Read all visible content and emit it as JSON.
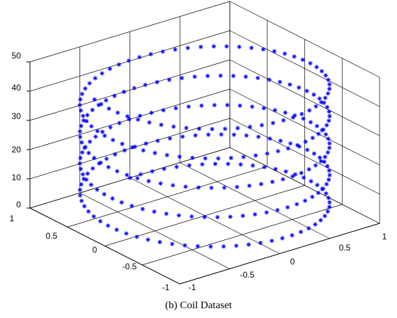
{
  "chart_data": {
    "type": "scatter3d",
    "title": "",
    "caption": "(b) Coil Dataset",
    "xlabel": "",
    "ylabel": "",
    "zlabel": "",
    "xlim": [
      -1,
      1
    ],
    "ylim": [
      -1,
      1
    ],
    "zlim": [
      0,
      50
    ],
    "x_ticks": [
      "-1",
      "-0.5",
      "0",
      "0.5",
      "1"
    ],
    "y_ticks": [
      "-1",
      "-0.5",
      "0",
      "0.5",
      "1"
    ],
    "z_ticks": [
      "0",
      "10",
      "20",
      "30",
      "40",
      "50"
    ],
    "grid": true,
    "marker": "asterisk",
    "marker_color": "#0000ff",
    "series": [
      {
        "param": "t",
        "t_range": [
          0,
          30
        ],
        "x": "cos(t)",
        "y": "sin(t)",
        "z": "1.6*t",
        "n_points": 290
      }
    ]
  }
}
